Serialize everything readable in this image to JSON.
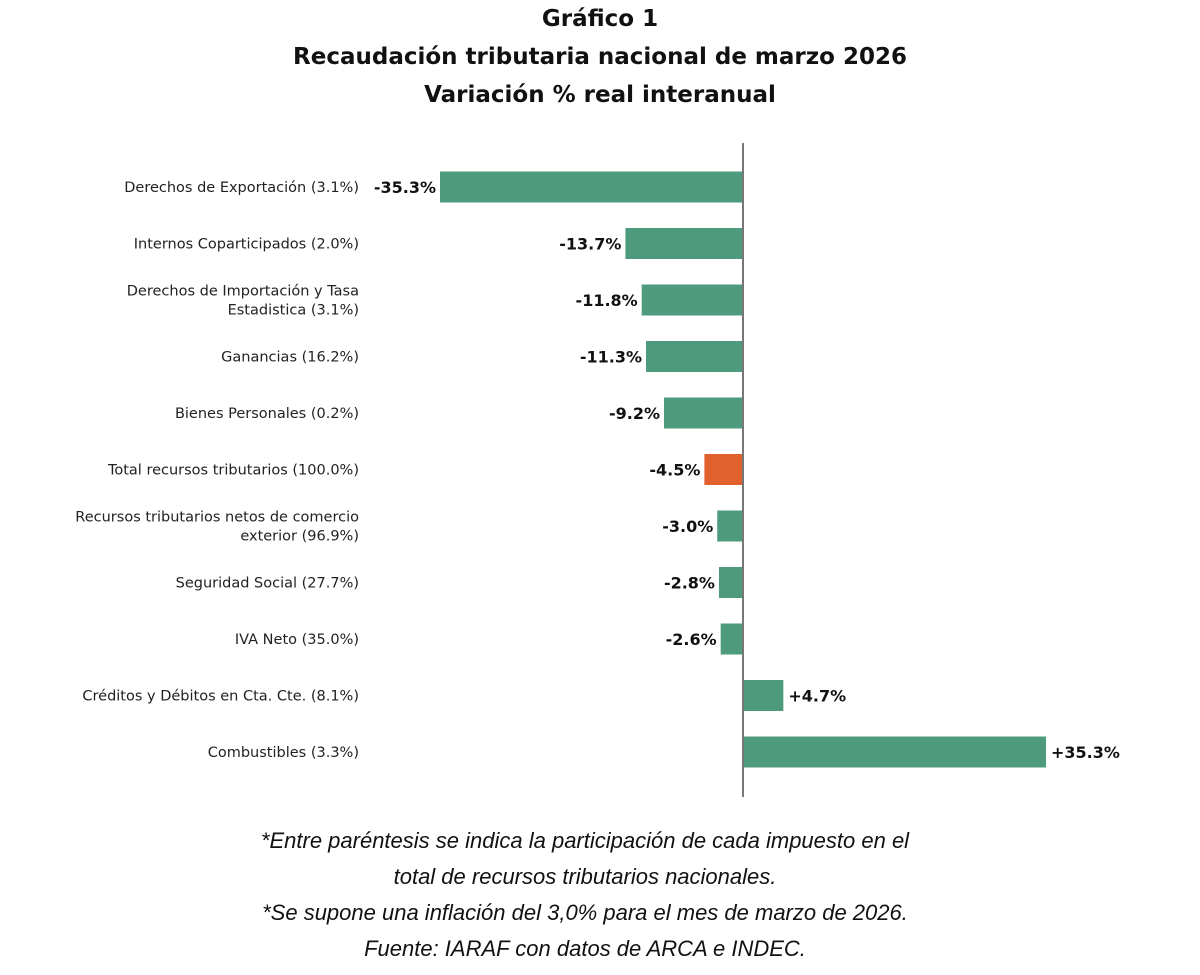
{
  "chart_data": {
    "type": "bar",
    "orientation": "horizontal",
    "title": [
      "Gráfico 1",
      "Recaudación tributaria nacional de marzo 2026",
      "Variación % real interanual"
    ],
    "categories": [
      "Derechos de Exportación (3.1%)",
      "Internos Coparticipados (2.0%)",
      "Derechos de Importación y Tasa\nEstadistica (3.1%)",
      "Ganancias (16.2%)",
      "Bienes Personales (0.2%)",
      "Total recursos tributarios (100.0%)",
      "Recursos tributarios netos de comercio\nexterior (96.9%)",
      "Seguridad Social (27.7%)",
      "IVA Neto (35.0%)",
      "Créditos y Débitos en Cta. Cte. (8.1%)",
      "Combustibles (3.3%)"
    ],
    "values": [
      -35.3,
      -13.7,
      -11.8,
      -11.3,
      -9.2,
      -4.5,
      -3.0,
      -2.8,
      -2.6,
      4.7,
      35.3
    ],
    "data_labels": [
      "-35.3%",
      "-13.7%",
      "-11.8%",
      "-11.3%",
      "-9.2%",
      "-4.5%",
      "-3.0%",
      "-2.8%",
      "-2.6%",
      "+4.7%",
      "+35.3%"
    ],
    "highlight_index": 5,
    "xlim": [
      -35.3,
      35.3
    ],
    "grid": false,
    "colors": {
      "default": "#4e9a7c",
      "highlight": "#e0602e",
      "axis": "#777777"
    }
  },
  "notes": [
    "*Entre paréntesis se indica la participación de cada impuesto en el",
    "total de recursos tributarios nacionales.",
    "*Se supone una inflación del 3,0% para el mes de marzo de 2026.",
    "Fuente: IARAF con datos de ARCA e INDEC."
  ]
}
